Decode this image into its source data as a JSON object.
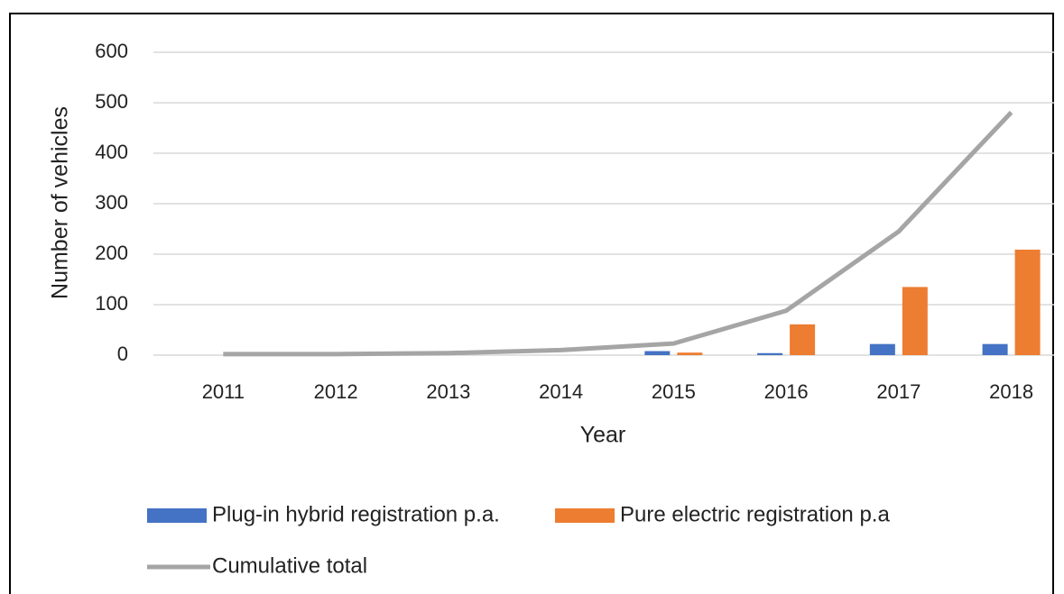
{
  "chart_data": {
    "type": "bar",
    "x_label": "Year",
    "y_label": "Number of vehicles",
    "categories": [
      "2011",
      "2012",
      "2013",
      "2014",
      "2015",
      "2016",
      "2017",
      "2018"
    ],
    "series": [
      {
        "name": "Plug-in hybrid registration p.a.",
        "color": "#4472c4",
        "type": "bar",
        "values": [
          0,
          0,
          0,
          0,
          8,
          4,
          22,
          22
        ]
      },
      {
        "name": "Pure electric registration p.a",
        "color": "#ed7d31",
        "type": "bar",
        "values": [
          0,
          0,
          0,
          0,
          5,
          61,
          135,
          209
        ]
      },
      {
        "name": "Cumulative total",
        "color": "#a5a5a5",
        "type": "line",
        "values": [
          2,
          2,
          4,
          10,
          23,
          88,
          245,
          481
        ]
      }
    ],
    "ylim": [
      0,
      600
    ],
    "yticks": [
      0,
      100,
      200,
      300,
      400,
      500,
      600
    ],
    "grid": true,
    "legend": "bottom"
  }
}
